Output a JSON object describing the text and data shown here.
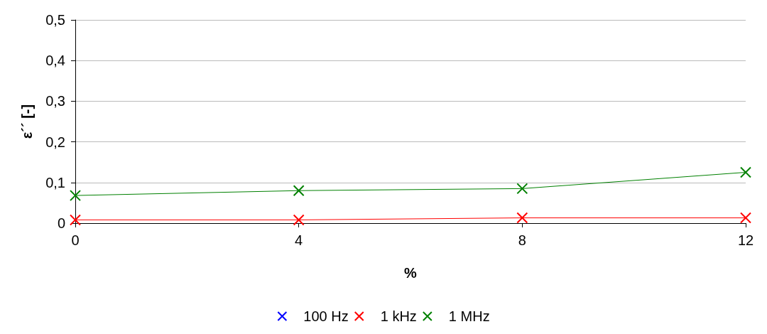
{
  "chart_data": {
    "type": "line",
    "xlabel": "%",
    "ylabel": "ε´´ [-]",
    "x": [
      0,
      4,
      8,
      12
    ],
    "series": [
      {
        "name": "100 Hz",
        "color": "#0000ff",
        "values": [
          null,
          null,
          null,
          null
        ]
      },
      {
        "name": "1 kHz",
        "color": "#ff0000",
        "values": [
          0.008,
          0.008,
          0.013,
          0.013
        ]
      },
      {
        "name": "1 MHz",
        "color": "#008000",
        "values": [
          0.068,
          0.08,
          0.085,
          0.125
        ]
      }
    ],
    "xlim": [
      0,
      12
    ],
    "xticks": [
      0,
      4,
      8,
      12
    ],
    "ylim": [
      0,
      0.5
    ],
    "yticks": [
      0,
      {
        "value": 0.1,
        "label": "0,1"
      },
      {
        "value": 0.2,
        "label": "0,2"
      },
      {
        "value": 0.3,
        "label": "0,3"
      },
      {
        "value": 0.4,
        "label": "0,4"
      },
      {
        "value": 0.5,
        "label": "0,5"
      }
    ],
    "grid": "y",
    "legend": "bottom",
    "marker": "cross",
    "line_style": "solid"
  }
}
